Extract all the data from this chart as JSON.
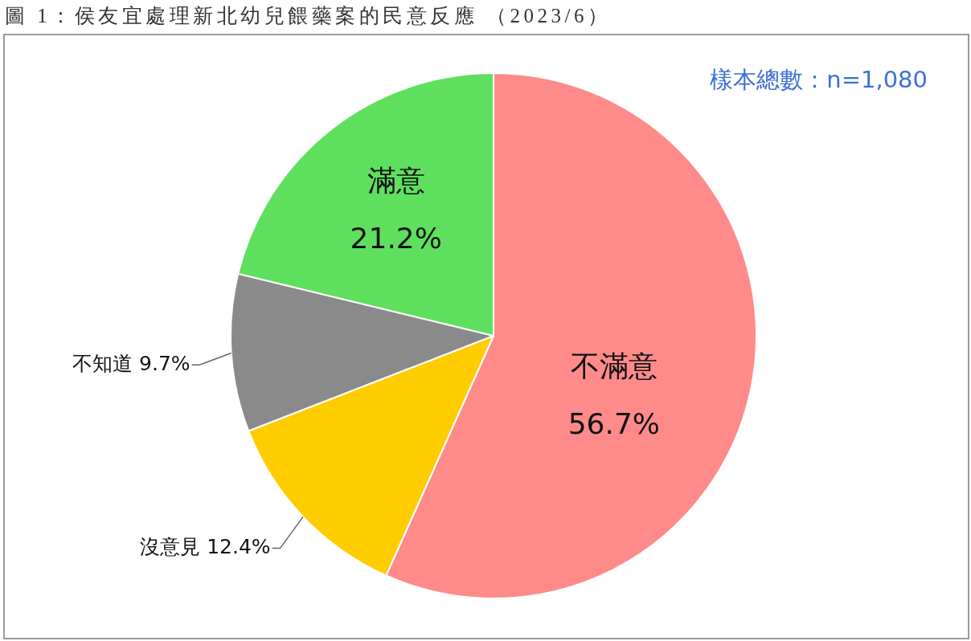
{
  "chart_data": {
    "type": "pie",
    "title": "圖 1：侯友宜處理新北幼兒餵藥案的民意反應 （2023/6）",
    "categories": [
      "不滿意",
      "沒意見",
      "不知道",
      "滿意"
    ],
    "values": [
      56.7,
      12.4,
      9.7,
      21.2
    ],
    "colors": [
      "#ff8a8a",
      "#ffcc00",
      "#8a8a8a",
      "#5ee05e"
    ],
    "value_labels": [
      "56.7%",
      "12.4%",
      "9.7%",
      "21.2%"
    ],
    "annotations": [
      "樣本總數：n=1,080"
    ],
    "legend": false
  }
}
